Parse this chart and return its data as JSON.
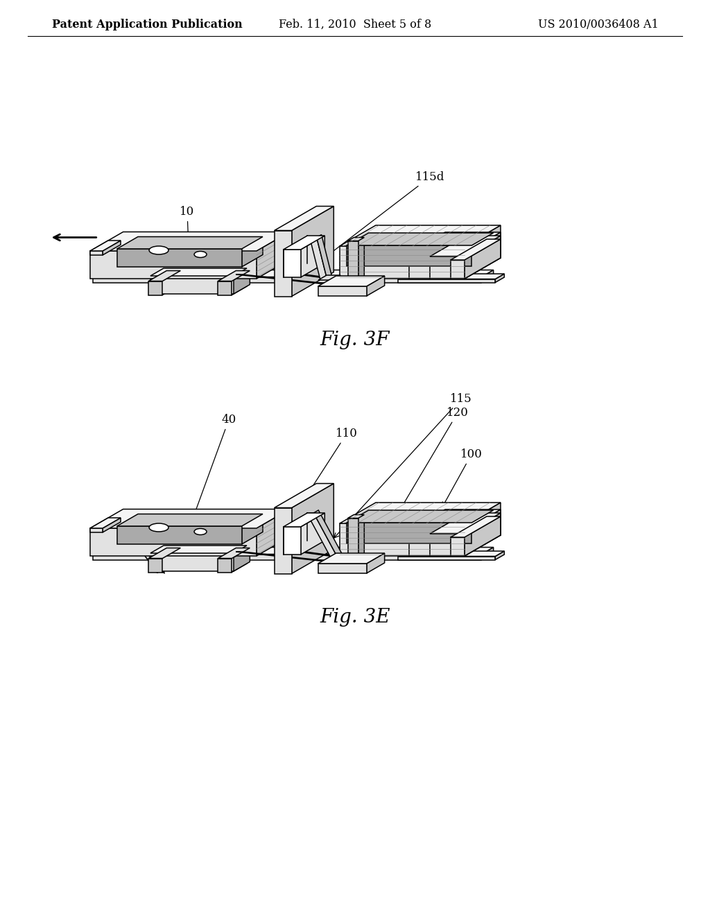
{
  "background_color": "#ffffff",
  "header_left": "Patent Application Publication",
  "header_center": "Feb. 11, 2010  Sheet 5 of 8",
  "header_right": "US 2010/0036408 A1",
  "header_fontsize": 11.5,
  "fig3e_caption": "Fig. 3E",
  "fig3f_caption": "Fig. 3F",
  "caption_fontsize": 20,
  "label_fontsize": 12,
  "lc": "#000000",
  "fc_light": "#f8f8f8",
  "fc_mid": "#e0e0e0",
  "fc_dark": "#b8b8b8",
  "fc_vdark": "#909090"
}
